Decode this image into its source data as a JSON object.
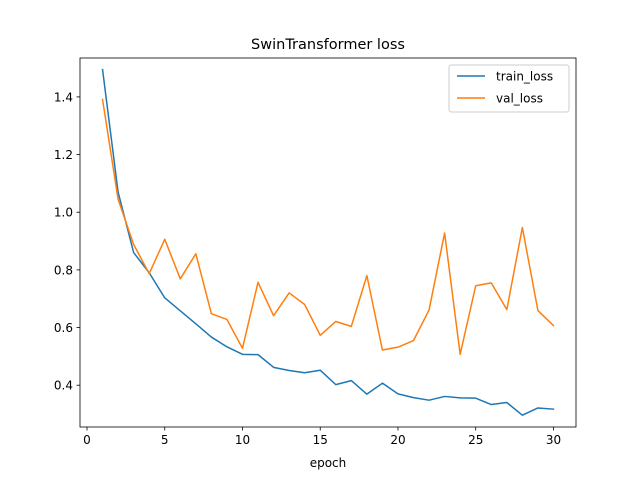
{
  "chart_data": {
    "type": "line",
    "title": "SwinTransformer loss",
    "xlabel": "epoch",
    "ylabel": "",
    "x": [
      1,
      2,
      3,
      4,
      5,
      6,
      7,
      8,
      9,
      10,
      11,
      12,
      13,
      14,
      15,
      16,
      17,
      18,
      19,
      20,
      21,
      22,
      23,
      24,
      25,
      26,
      27,
      28,
      29,
      30
    ],
    "xlim": [
      -0.45,
      31.45
    ],
    "ylim": [
      0.255,
      1.535
    ],
    "xticks": [
      0,
      5,
      10,
      15,
      20,
      25,
      30
    ],
    "yticks": [
      0.4,
      0.6,
      0.8,
      1.0,
      1.2,
      1.4
    ],
    "ytick_labels": [
      "0.4",
      "0.6",
      "0.8",
      "1.0",
      "1.2",
      "1.4"
    ],
    "grid": false,
    "legend_position": "top-right",
    "series": [
      {
        "name": "train_loss",
        "color": "#1f77b4",
        "values": [
          1.495,
          1.07,
          0.86,
          0.79,
          0.703,
          0.658,
          0.613,
          0.567,
          0.533,
          0.507,
          0.506,
          0.462,
          0.451,
          0.443,
          0.452,
          0.402,
          0.416,
          0.369,
          0.407,
          0.37,
          0.357,
          0.348,
          0.361,
          0.356,
          0.355,
          0.333,
          0.34,
          0.296,
          0.321,
          0.317
        ]
      },
      {
        "name": "val_loss",
        "color": "#ff7f0e",
        "values": [
          1.391,
          1.045,
          0.888,
          0.787,
          0.906,
          0.769,
          0.856,
          0.648,
          0.628,
          0.528,
          0.757,
          0.641,
          0.72,
          0.68,
          0.573,
          0.621,
          0.604,
          0.78,
          0.522,
          0.532,
          0.555,
          0.661,
          0.928,
          0.507,
          0.745,
          0.755,
          0.662,
          0.947,
          0.659,
          0.607
        ]
      }
    ]
  }
}
